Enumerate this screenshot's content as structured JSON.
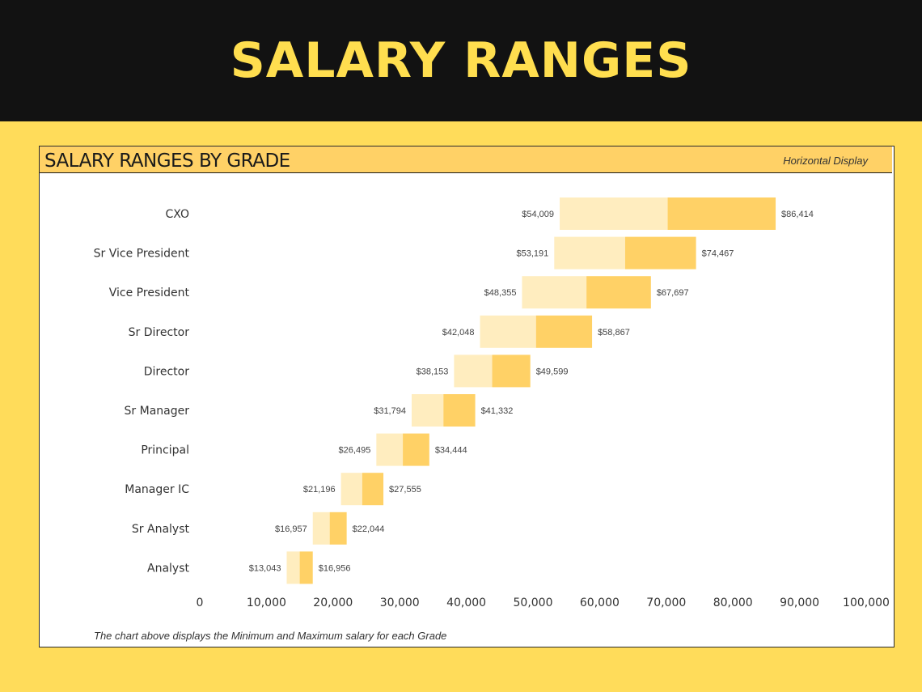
{
  "page": {
    "title": "SALARY RANGES"
  },
  "panel": {
    "title": "SALARY RANGES BY GRADE",
    "mode_label": "Horizontal Display",
    "caption": "The chart above displays the Minimum and Maximum salary for each Grade"
  },
  "colors": {
    "background": "#ffdc5a",
    "banner": "#121212",
    "title_text": "#ffde4f",
    "header_fill": "#ffd166",
    "bar_lower": "#ffedbf",
    "bar_upper": "#ffd166"
  },
  "chart_data": {
    "type": "bar",
    "orientation": "horizontal",
    "stacked_range": true,
    "categories": [
      "CXO",
      "Sr Vice President",
      "Vice President",
      "Sr Director",
      "Director",
      "Sr Manager",
      "Principal",
      "Manager IC",
      "Sr Analyst",
      "Analyst"
    ],
    "min_values": [
      54009,
      53191,
      48355,
      42048,
      38153,
      31794,
      26495,
      21196,
      16957,
      13043
    ],
    "mid_values": [
      70212,
      63829,
      58026,
      50457,
      43876,
      36563,
      30470,
      24376,
      19500,
      14999
    ],
    "max_values": [
      86414,
      74467,
      67697,
      58867,
      49599,
      41332,
      34444,
      27555,
      22044,
      16956
    ],
    "min_labels": [
      "$54,009",
      "$53,191",
      "$48,355",
      "$42,048",
      "$38,153",
      "$31,794",
      "$26,495",
      "$21,196",
      "$16,957",
      "$13,043"
    ],
    "max_labels": [
      "$86,414",
      "$74,467",
      "$67,697",
      "$58,867",
      "$49,599",
      "$41,332",
      "$34,444",
      "$27,555",
      "$22,044",
      "$16,956"
    ],
    "x_ticks": [
      0,
      10000,
      20000,
      30000,
      40000,
      50000,
      60000,
      70000,
      80000,
      90000,
      100000
    ],
    "x_tick_labels": [
      "0",
      "10,000",
      "20,000",
      "30,000",
      "40,000",
      "50,000",
      "60,000",
      "70,000",
      "80,000",
      "90,000",
      "100,000"
    ],
    "xlim": [
      0,
      100000
    ],
    "grid": false,
    "legend": "none"
  }
}
